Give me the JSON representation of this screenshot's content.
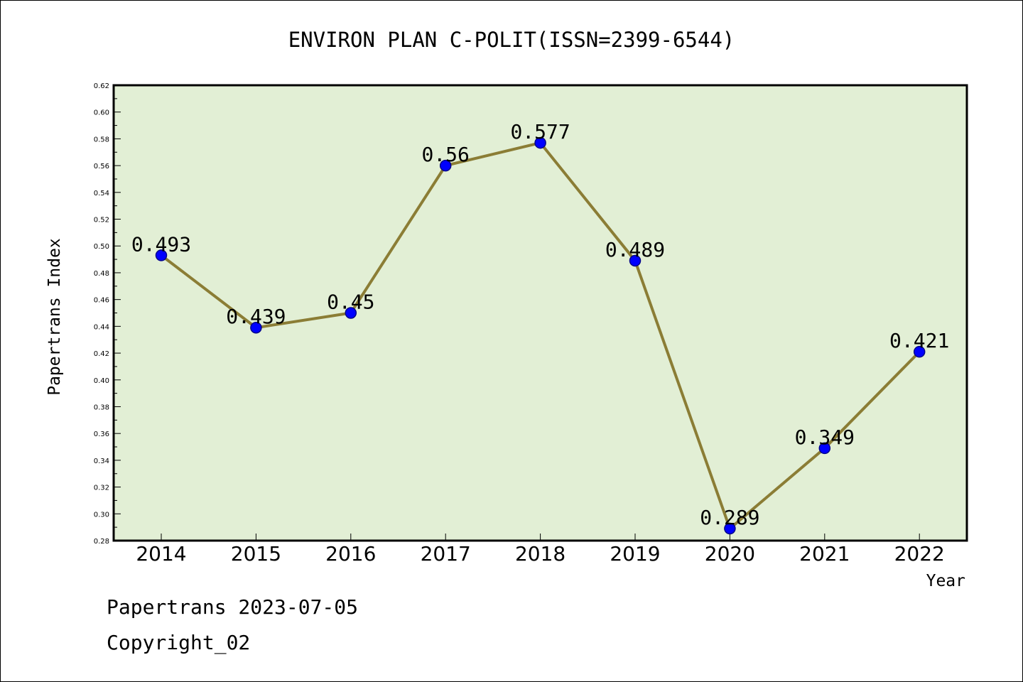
{
  "chart_data": {
    "type": "line",
    "title": "ENVIRON PLAN C-POLIT(ISSN=2399-6544)",
    "xlabel": "Year",
    "ylabel": "Papertrans Index",
    "categories": [
      "2014",
      "2015",
      "2016",
      "2017",
      "2018",
      "2019",
      "2020",
      "2021",
      "2022"
    ],
    "series": [
      {
        "values": [
          0.493,
          0.439,
          0.45,
          0.56,
          0.577,
          0.489,
          0.289,
          0.349,
          0.421
        ]
      }
    ],
    "data_labels": [
      "0.493",
      "0.439",
      "0.45",
      "0.56",
      "0.577",
      "0.489",
      "0.289",
      "0.349",
      "0.421"
    ],
    "ylim": [
      0.28,
      0.62
    ],
    "yticks": [
      "0.28",
      "0.30",
      "0.32",
      "0.34",
      "0.36",
      "0.38",
      "0.40",
      "0.42",
      "0.44",
      "0.46",
      "0.48",
      "0.50",
      "0.52",
      "0.54",
      "0.56",
      "0.58",
      "0.60",
      "0.62"
    ],
    "grid": false,
    "legend": "none",
    "colors": {
      "plot_background": "#e2efd5",
      "line": "#8b7d35",
      "marker_fill": "#0000ff",
      "marker_edge": "#00008b"
    }
  },
  "footer": {
    "line1": "Papertrans 2023-07-05",
    "line2": "Copyright_02"
  }
}
